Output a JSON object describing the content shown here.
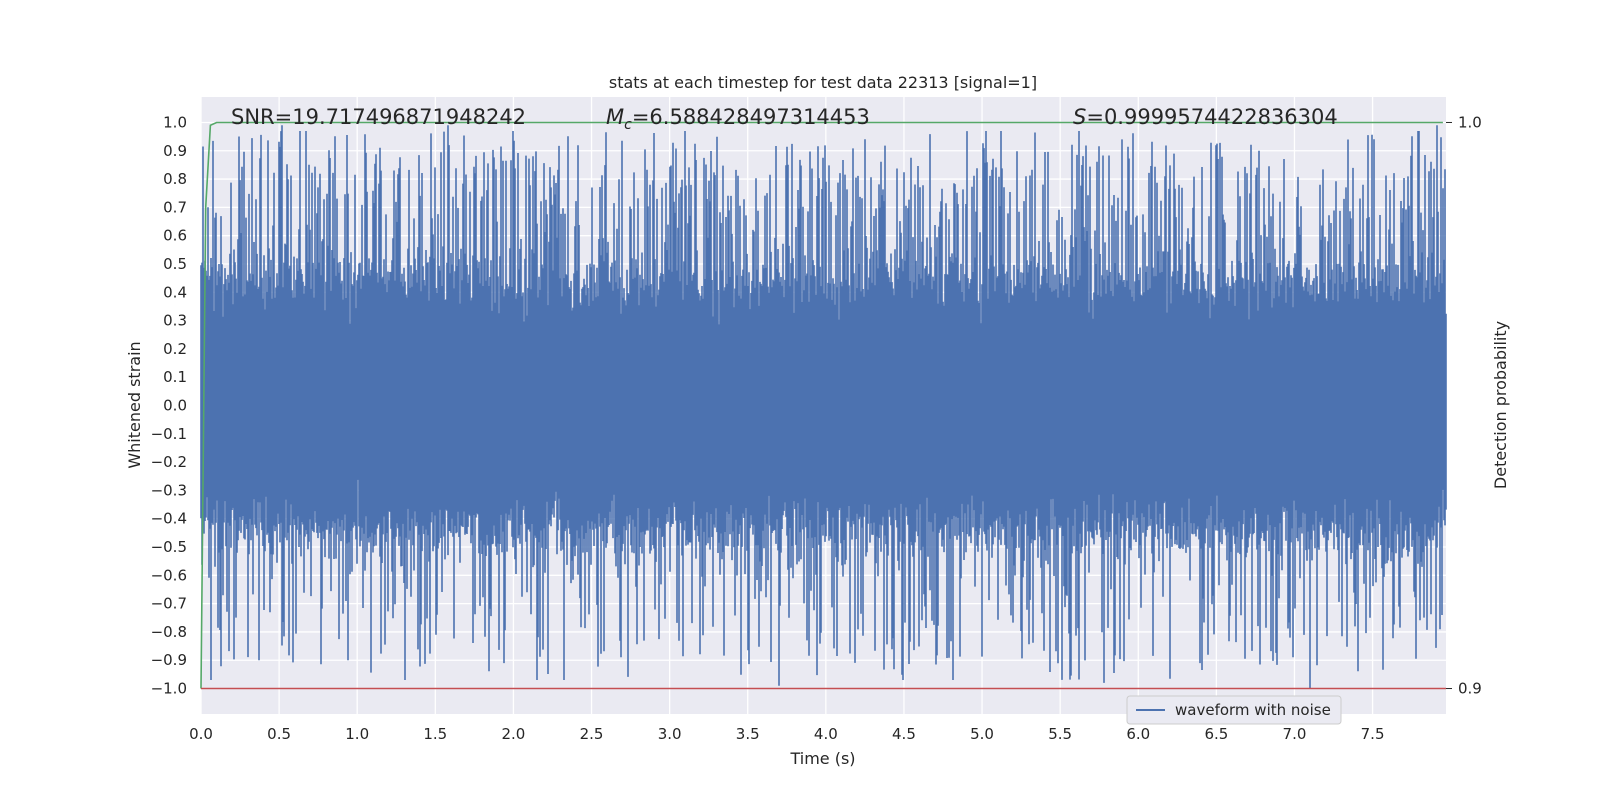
{
  "chart_data": {
    "type": "line",
    "title": "stats at each timestep for test data 22313 [signal=1]",
    "xlabel": "Time (s)",
    "ylabel": "Whitened strain",
    "y2label": "Detection probability",
    "xlim": [
      0.0,
      7.97
    ],
    "ylim": [
      -1.09,
      1.09
    ],
    "y2lim": [
      0.9,
      1.0
    ],
    "xticks": [
      0.0,
      0.5,
      1.0,
      1.5,
      2.0,
      2.5,
      3.0,
      3.5,
      4.0,
      4.5,
      5.0,
      5.5,
      6.0,
      6.5,
      7.0,
      7.5
    ],
    "xtick_labels": [
      "0.0",
      "0.5",
      "1.0",
      "1.5",
      "2.0",
      "2.5",
      "3.0",
      "3.5",
      "4.0",
      "4.5",
      "5.0",
      "5.5",
      "6.0",
      "6.5",
      "7.0",
      "7.5"
    ],
    "yticks": [
      1.0,
      0.9,
      0.8,
      0.7,
      0.6,
      0.5,
      0.4,
      0.3,
      0.2,
      0.1,
      0.0,
      -0.1,
      -0.2,
      -0.3,
      -0.4,
      -0.5,
      -0.6,
      -0.7,
      -0.8,
      -0.9,
      -1.0
    ],
    "ytick_labels": [
      "1.0",
      "0.9",
      "0.8",
      "0.7",
      "0.6",
      "0.5",
      "0.4",
      "0.3",
      "0.2",
      "0.1",
      "0.0",
      "−0.1",
      "−0.2",
      "−0.3",
      "−0.4",
      "−0.5",
      "−0.6",
      "−0.7",
      "−0.8",
      "−0.9",
      "−1.0"
    ],
    "y2ticks": [
      1.0,
      0.9
    ],
    "y2tick_labels": [
      "1.0",
      "0.9"
    ],
    "grid": true,
    "legend_position": "lower-right",
    "annotations": {
      "snr": "SNR=19.717496871948242",
      "mc_symbol": "M",
      "mc_sub": "c",
      "mc_value": "=6.588428497314453",
      "s_symbol": "S",
      "s_value": "=0.9999574422836304"
    },
    "series": [
      {
        "name": "waveform with noise",
        "axis": "left",
        "color": "#4c72b0",
        "description_of_values": "noisy whitened strain spanning t=0 to 7.97 s, bulk between -0.45 and 0.45, peaks near ±1.0",
        "t_range": [
          0.0,
          7.97
        ],
        "envelope_typical": [
          -0.45,
          0.45
        ],
        "notable_peaks": [
          {
            "x": 0.52,
            "y": 0.99
          },
          {
            "x": 1.58,
            "y": 0.99
          },
          {
            "x": 7.91,
            "y": 0.99
          },
          {
            "x": 3.7,
            "y": -0.99
          },
          {
            "x": 7.1,
            "y": -1.0
          },
          {
            "x": 5.78,
            "y": -0.98
          },
          {
            "x": 2.15,
            "y": -0.97
          },
          {
            "x": 0.37,
            "y": -0.9
          }
        ]
      },
      {
        "name": "",
        "axis": "right",
        "color": "#55a868",
        "x": [
          0.0,
          0.03,
          0.06,
          0.1,
          0.2,
          7.95
        ],
        "y": [
          0.9,
          0.985,
          0.9995,
          1.0,
          1.0,
          1.0
        ]
      },
      {
        "name": "",
        "axis": "right",
        "color": "#c44e52",
        "x": [
          0.0,
          7.97
        ],
        "y": [
          0.9,
          0.9
        ]
      }
    ]
  }
}
